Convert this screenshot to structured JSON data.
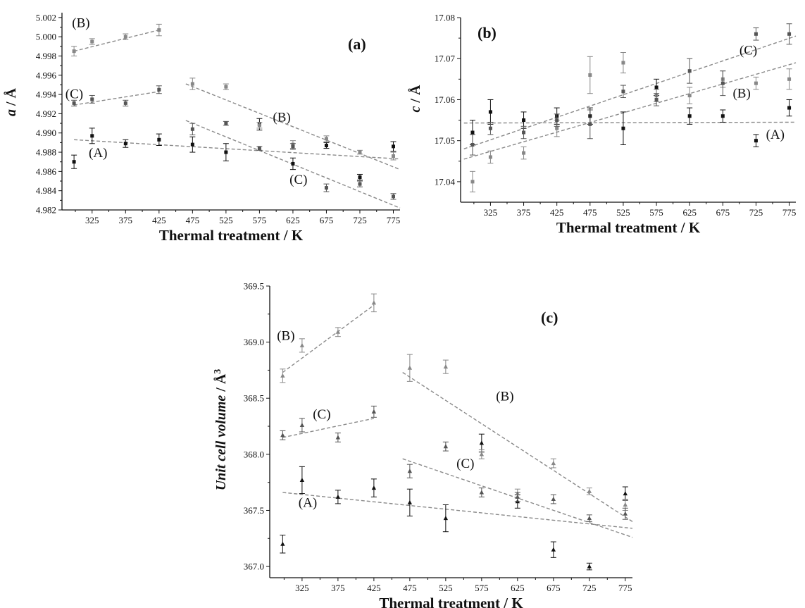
{
  "chart_data": [
    {
      "type": "scatter",
      "panel_label": "(a)",
      "xlabel": "Thermal treatment / K",
      "ylabel_var": "a",
      "ylabel_rest": " / Å",
      "xlim": [
        280,
        785
      ],
      "ylim": [
        4.982,
        5.0025
      ],
      "xticks": [
        "325",
        "375",
        "425",
        "475",
        "525",
        "575",
        "625",
        "675",
        "725",
        "775"
      ],
      "yticks": [
        "4.982",
        "4.984",
        "4.986",
        "4.988",
        "4.990",
        "4.992",
        "4.994",
        "4.996",
        "4.998",
        "5.000",
        "5.002"
      ],
      "series": [
        {
          "color": "#111111",
          "marker": "square",
          "x": [
            298,
            325,
            375,
            425,
            475,
            525,
            575,
            625,
            675,
            725,
            775
          ],
          "y": [
            4.987,
            4.9897,
            4.9889,
            4.9893,
            4.9888,
            4.988,
            4.9909,
            4.9868,
            4.9887,
            4.9854,
            4.9886
          ],
          "err": [
            0.0007,
            0.0008,
            0.0004,
            0.0006,
            0.0008,
            0.0009,
            0.0006,
            0.0006,
            0.0003,
            0.0003,
            0.0005
          ]
        },
        {
          "color": "#888888",
          "marker": "square",
          "x": [
            298,
            325,
            375,
            425,
            475,
            525,
            575,
            625,
            675,
            725,
            775
          ],
          "y": [
            4.9985,
            4.9995,
            5.0,
            5.0007,
            4.9951,
            4.9948,
            4.9908,
            4.9888,
            4.9894,
            4.988,
            4.9876
          ],
          "err": [
            0.0005,
            0.0003,
            0.0003,
            0.0006,
            0.0006,
            0.0003,
            0.0003,
            0.0004,
            0.0003,
            0.0002,
            0.0004
          ]
        },
        {
          "color": "#555555",
          "marker": "square",
          "x": [
            298,
            325,
            375,
            425,
            475,
            525,
            575,
            625,
            675,
            725,
            775
          ],
          "y": [
            4.9931,
            4.9935,
            4.9931,
            4.9945,
            4.9904,
            4.991,
            4.9884,
            4.9886,
            4.9843,
            4.9847,
            4.9834
          ],
          "err": [
            0.0003,
            0.0004,
            0.0003,
            0.0004,
            0.0006,
            0.0002,
            0.0002,
            0.0003,
            0.0004,
            0.0003,
            0.0003
          ]
        }
      ],
      "fits": [
        {
          "x": [
            298,
            785
          ],
          "y": [
            4.9893,
            4.9873
          ]
        },
        {
          "x": [
            298,
            425
          ],
          "y": [
            4.9985,
            5.0007
          ]
        },
        {
          "x": [
            298,
            425
          ],
          "y": [
            4.9929,
            4.9943
          ]
        },
        {
          "x": [
            465,
            785
          ],
          "y": [
            4.9951,
            4.9862
          ]
        },
        {
          "x": [
            465,
            785
          ],
          "y": [
            4.9913,
            4.9822
          ]
        }
      ],
      "annotations": [
        {
          "text": "(B)",
          "x": 295,
          "y": 5.001
        },
        {
          "text": "(C)",
          "x": 285,
          "y": 4.9936
        },
        {
          "text": "(A)",
          "x": 320,
          "y": 4.9875
        },
        {
          "text": "(B)",
          "x": 595,
          "y": 4.9912
        },
        {
          "text": "(C)",
          "x": 620,
          "y": 4.9847
        }
      ]
    },
    {
      "type": "scatter",
      "panel_label": "(b)",
      "xlabel": "Thermal treatment / K",
      "ylabel_var": "c",
      "ylabel_rest": " / Å",
      "xlim": [
        280,
        785
      ],
      "ylim": [
        17.035,
        17.08
      ],
      "xticks": [
        "325",
        "375",
        "425",
        "475",
        "525",
        "575",
        "625",
        "675",
        "725",
        "775"
      ],
      "yticks": [
        "17.04",
        "17.05",
        "17.06",
        "17.07",
        "17.08"
      ],
      "series": [
        {
          "color": "#111111",
          "marker": "square",
          "x": [
            298,
            325,
            375,
            425,
            475,
            525,
            575,
            625,
            675,
            725,
            775
          ],
          "y": [
            17.052,
            17.057,
            17.055,
            17.056,
            17.056,
            17.053,
            17.063,
            17.056,
            17.056,
            17.05,
            17.058
          ],
          "err": [
            0.003,
            0.003,
            0.002,
            0.002,
            0.002,
            0.004,
            0.002,
            0.002,
            0.0015,
            0.0015,
            0.002
          ]
        },
        {
          "color": "#888888",
          "marker": "square",
          "x": [
            298,
            325,
            375,
            425,
            475,
            525,
            575,
            625,
            675,
            725,
            775
          ],
          "y": [
            17.04,
            17.046,
            17.047,
            17.053,
            17.066,
            17.069,
            17.061,
            17.061,
            17.065,
            17.064,
            17.065
          ],
          "err": [
            0.0025,
            0.0015,
            0.0015,
            0.002,
            0.0045,
            0.0025,
            0.0015,
            0.002,
            0.002,
            0.0015,
            0.0025
          ]
        },
        {
          "color": "#555555",
          "marker": "square",
          "x": [
            298,
            325,
            375,
            425,
            475,
            525,
            575,
            625,
            675,
            725,
            775
          ],
          "y": [
            17.049,
            17.053,
            17.052,
            17.055,
            17.054,
            17.062,
            17.06,
            17.067,
            17.064,
            17.076,
            17.076
          ],
          "err": [
            0.0025,
            0.0015,
            0.0015,
            0.0015,
            0.0035,
            0.0015,
            0.0015,
            0.003,
            0.003,
            0.0015,
            0.0025
          ]
        }
      ],
      "fits": [
        {
          "x": [
            285,
            785
          ],
          "y": [
            17.0543,
            17.0545
          ]
        },
        {
          "x": [
            285,
            785
          ],
          "y": [
            17.0455,
            17.069
          ]
        },
        {
          "x": [
            285,
            785
          ],
          "y": [
            17.048,
            17.0755
          ]
        }
      ],
      "annotations": [
        {
          "text": "(C)",
          "x": 700,
          "y": 17.071
        },
        {
          "text": "(B)",
          "x": 690,
          "y": 17.0605
        },
        {
          "text": "(A)",
          "x": 740,
          "y": 17.0505
        }
      ]
    },
    {
      "type": "scatter",
      "panel_label": "(c)",
      "xlabel": "Thermal treatment / K",
      "ylabel_var": "Unit cell volume",
      "ylabel_rest": " / Å",
      "ylabel_sup": "3",
      "xlim": [
        280,
        785
      ],
      "ylim": [
        366.9,
        369.5
      ],
      "xticks": [
        "325",
        "375",
        "425",
        "475",
        "525",
        "575",
        "625",
        "675",
        "725",
        "775"
      ],
      "yticks": [
        "367.0",
        "367.5",
        "368.0",
        "368.5",
        "369.0",
        "369.5"
      ],
      "series": [
        {
          "color": "#111111",
          "marker": "triangle",
          "x": [
            298,
            325,
            375,
            425,
            475,
            525,
            575,
            625,
            675,
            725,
            775
          ],
          "y": [
            367.2,
            367.77,
            367.62,
            367.7,
            367.57,
            367.43,
            368.1,
            367.58,
            367.15,
            367.0,
            367.65
          ],
          "err": [
            0.08,
            0.12,
            0.06,
            0.08,
            0.12,
            0.12,
            0.08,
            0.06,
            0.07,
            0.03,
            0.06
          ]
        },
        {
          "color": "#888888",
          "marker": "triangle",
          "x": [
            298,
            325,
            375,
            425,
            475,
            525,
            575,
            625,
            675,
            725,
            775
          ],
          "y": [
            368.7,
            368.97,
            369.09,
            369.35,
            368.77,
            368.78,
            368.0,
            367.65,
            367.92,
            367.67,
            367.55
          ],
          "err": [
            0.06,
            0.06,
            0.04,
            0.08,
            0.12,
            0.06,
            0.04,
            0.04,
            0.04,
            0.03,
            0.05
          ]
        },
        {
          "color": "#555555",
          "marker": "triangle",
          "x": [
            298,
            325,
            375,
            425,
            475,
            525,
            575,
            625,
            675,
            725,
            775
          ],
          "y": [
            368.17,
            368.26,
            368.15,
            368.38,
            367.85,
            368.07,
            367.66,
            367.62,
            367.6,
            367.43,
            367.47
          ],
          "err": [
            0.04,
            0.06,
            0.04,
            0.05,
            0.06,
            0.04,
            0.04,
            0.04,
            0.04,
            0.03,
            0.05
          ]
        }
      ],
      "fits": [
        {
          "x": [
            298,
            785
          ],
          "y": [
            367.66,
            367.34
          ]
        },
        {
          "x": [
            298,
            425
          ],
          "y": [
            368.73,
            369.33
          ]
        },
        {
          "x": [
            298,
            425
          ],
          "y": [
            368.15,
            368.32
          ]
        },
        {
          "x": [
            465,
            785
          ],
          "y": [
            368.73,
            367.4
          ]
        },
        {
          "x": [
            465,
            785
          ],
          "y": [
            367.96,
            367.26
          ]
        }
      ],
      "annotations": [
        {
          "text": "(B)",
          "x": 290,
          "y": 369.02
        },
        {
          "text": "(C)",
          "x": 340,
          "y": 368.32
        },
        {
          "text": "(A)",
          "x": 320,
          "y": 367.53
        },
        {
          "text": "(B)",
          "x": 595,
          "y": 368.48
        },
        {
          "text": "(C)",
          "x": 540,
          "y": 367.88
        }
      ]
    }
  ]
}
